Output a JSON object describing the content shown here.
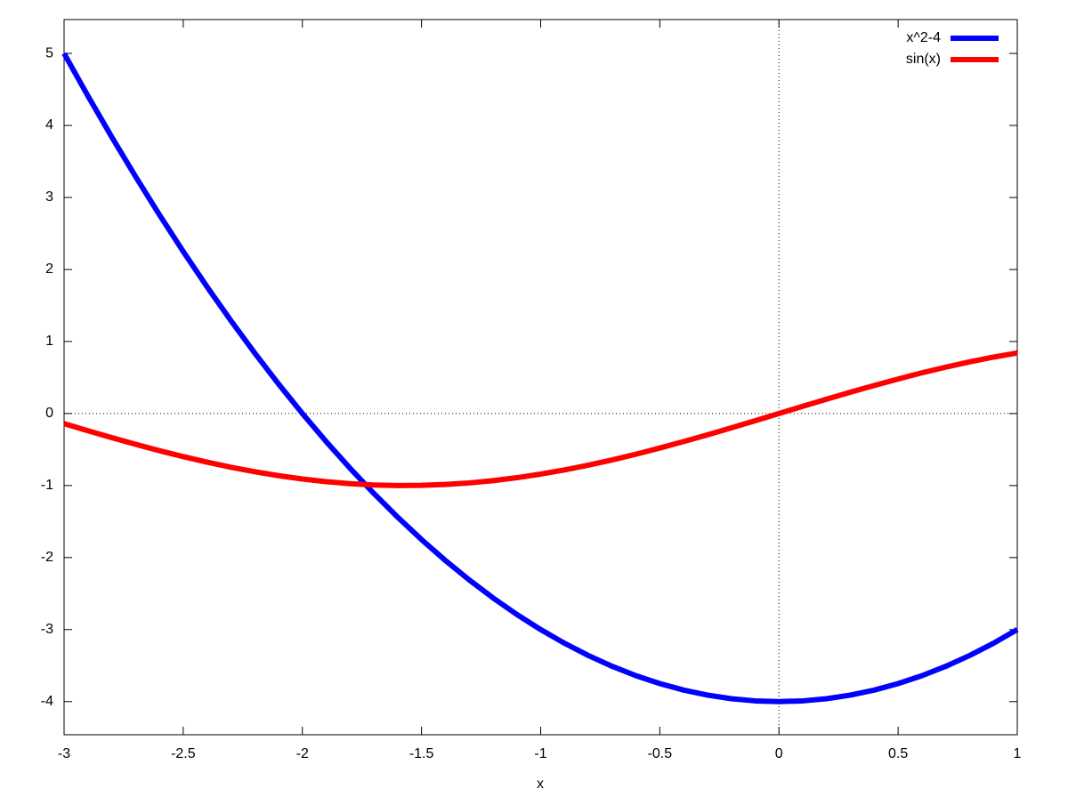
{
  "chart_data": {
    "type": "line",
    "xlabel": "x",
    "x": [
      -3,
      -2.9,
      -2.8,
      -2.7,
      -2.6,
      -2.5,
      -2.4,
      -2.3,
      -2.2,
      -2.1,
      -2,
      -1.9,
      -1.8,
      -1.7,
      -1.6,
      -1.5,
      -1.4,
      -1.3,
      -1.2,
      -1.1,
      -1,
      -0.9,
      -0.8,
      -0.7,
      -0.6,
      -0.5,
      -0.4,
      -0.3,
      -0.2,
      -0.1,
      0,
      0.1,
      0.2,
      0.3,
      0.4,
      0.5,
      0.6,
      0.7,
      0.8,
      0.9,
      1
    ],
    "series": [
      {
        "name": "x^2-4",
        "color": "#0000ff",
        "values": [
          5,
          4.41,
          3.84,
          3.29,
          2.76,
          2.25,
          1.76,
          1.29,
          0.84,
          0.41,
          0,
          -0.39,
          -0.76,
          -1.11,
          -1.44,
          -1.75,
          -2.04,
          -2.31,
          -2.56,
          -2.79,
          -3,
          -3.19,
          -3.36,
          -3.51,
          -3.64,
          -3.75,
          -3.84,
          -3.91,
          -3.96,
          -3.99,
          -4,
          -3.99,
          -3.96,
          -3.91,
          -3.84,
          -3.75,
          -3.64,
          -3.51,
          -3.36,
          -3.19,
          -3
        ]
      },
      {
        "name": "sin(x)",
        "color": "#ff0000",
        "values": [
          -0.141,
          -0.239,
          -0.335,
          -0.427,
          -0.516,
          -0.598,
          -0.675,
          -0.746,
          -0.808,
          -0.863,
          -0.909,
          -0.946,
          -0.974,
          -0.992,
          -1.0,
          -0.997,
          -0.985,
          -0.964,
          -0.932,
          -0.891,
          -0.841,
          -0.783,
          -0.717,
          -0.644,
          -0.565,
          -0.479,
          -0.389,
          -0.296,
          -0.199,
          -0.1,
          0,
          0.1,
          0.199,
          0.296,
          0.389,
          0.479,
          0.565,
          0.644,
          0.717,
          0.783,
          0.841
        ]
      }
    ],
    "xlim": [
      -3,
      1
    ],
    "xticks": [
      -3,
      -2.5,
      -2,
      -1.5,
      -1,
      -0.5,
      0,
      0.5,
      1
    ],
    "ylim": [
      -4.46,
      5.47
    ],
    "yticks": [
      -4,
      -3,
      -2,
      -1,
      0,
      1,
      2,
      3,
      4,
      5
    ],
    "zero_axis": true,
    "legend": "top-right"
  }
}
